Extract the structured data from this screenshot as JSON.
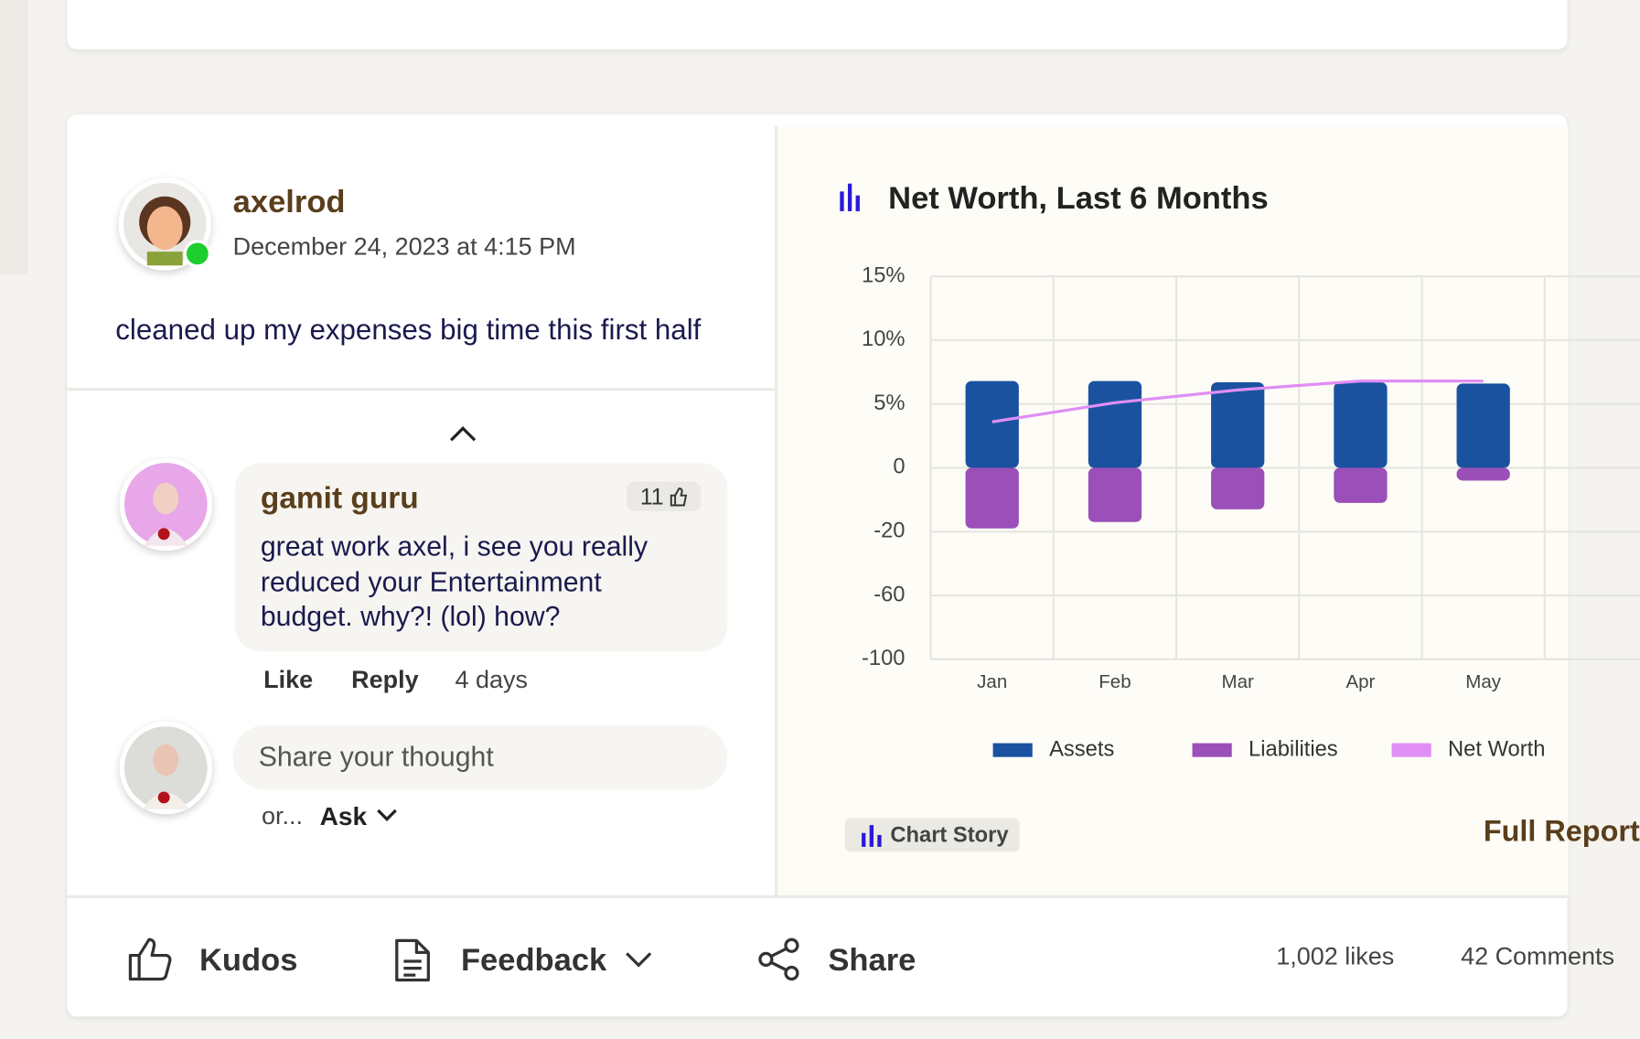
{
  "post": {
    "author": "axelrod",
    "timestamp": "December 24, 2023 at 4:15 PM",
    "text": "cleaned up my expenses big time this first half"
  },
  "comment": {
    "author": "gamit guru",
    "likes": 11,
    "text": "great work axel, i see you really reduced your Entertainment budget. why?! (lol) how?",
    "actions": [
      "Like",
      "Reply"
    ],
    "age": "4 days"
  },
  "reply_box": {
    "placeholder": "Share your thought",
    "alt_prefix": "or...",
    "alt_action": "Ask"
  },
  "chart_panel": {
    "story_button": "Chart Story",
    "link": "Full Report"
  },
  "chart_data": {
    "type": "bar",
    "title": "Net Worth, Last 6 Months",
    "categories": [
      "Jan",
      "Feb",
      "Mar",
      "Apr",
      "May"
    ],
    "series": [
      {
        "name": "Assets",
        "color": "#1a52a0",
        "values": [
          6.8,
          6.8,
          6.7,
          6.7,
          6.6
        ]
      },
      {
        "name": "Liabilities",
        "color": "#9b4fb8",
        "values": [
          -19,
          -17,
          -13,
          -11,
          -4
        ]
      },
      {
        "name": "Net Worth",
        "color": "#e08ef5",
        "type": "line",
        "values": [
          3.6,
          5.1,
          6.1,
          6.8,
          6.8
        ]
      }
    ],
    "ylim": [
      -100,
      15
    ],
    "yticks": [
      {
        "value": 15,
        "label": "15%"
      },
      {
        "value": 10,
        "label": "10%"
      },
      {
        "value": 5,
        "label": "5%"
      },
      0,
      -20,
      -60,
      -100
    ],
    "grid": true
  },
  "footer": {
    "actions": [
      "Kudos",
      "Feedback",
      "Share"
    ],
    "likes": "1,002 likes",
    "comments": "42 Comments"
  }
}
